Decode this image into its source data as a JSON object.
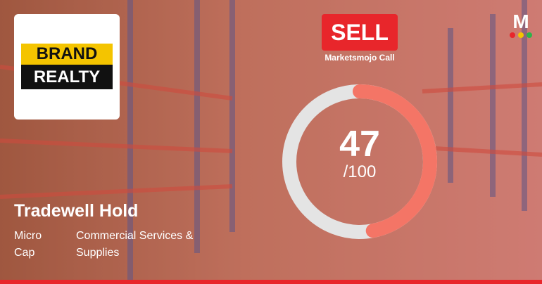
{
  "logo": {
    "line1": "BRAND",
    "line2": "REALTY"
  },
  "call": {
    "label": "SELL",
    "caption": "Marketsmojo Call"
  },
  "score": {
    "value": 47,
    "scale": {
      "value": 100,
      "label": "/100"
    }
  },
  "company": {
    "name": "Tradewell Hold",
    "size": "Micro Cap",
    "sector": "Commercial Services & Supplies"
  }
}
